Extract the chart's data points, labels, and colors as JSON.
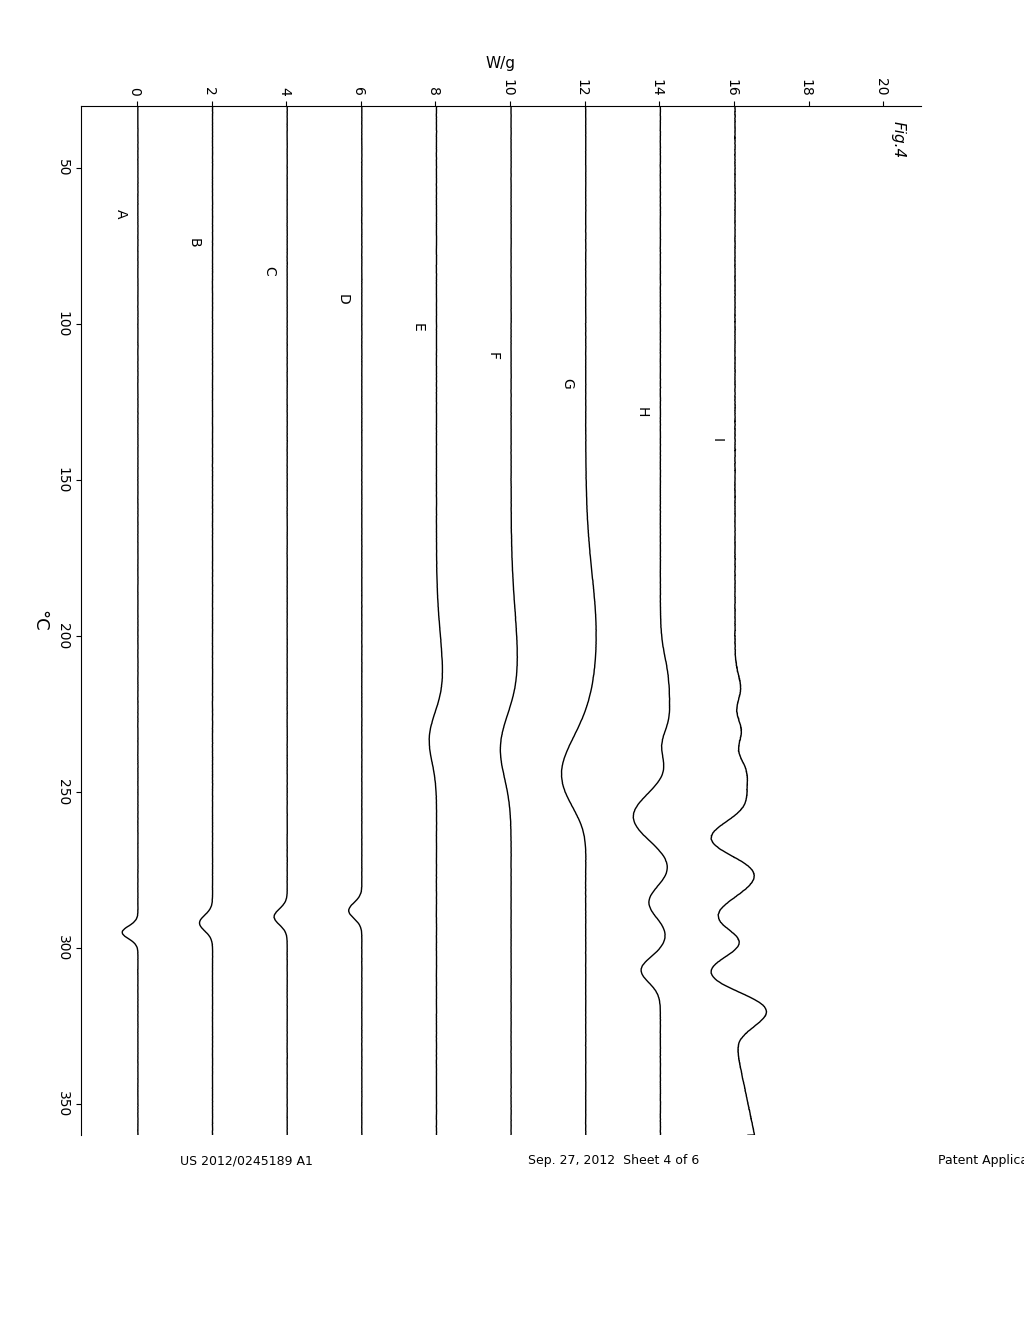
{
  "title_header": "Patent Application Publication",
  "title_date": "Sep. 27, 2012  Sheet 4 of 6",
  "title_patent": "US 2012/0245189 A1",
  "fig_label": "Fig.4",
  "temp_label": "°C",
  "wg_label": "W/g",
  "temp_min": 30,
  "temp_max": 350,
  "wg_min": 0,
  "wg_max": 20,
  "temp_ticks": [
    50,
    100,
    150,
    200,
    250,
    300,
    350
  ],
  "wg_ticks": [
    0,
    2,
    4,
    6,
    8,
    10,
    12,
    14,
    16,
    18,
    20
  ],
  "traces": [
    "A",
    "B",
    "C",
    "D",
    "E",
    "F",
    "G",
    "H",
    "I"
  ],
  "trace_offsets": [
    0,
    2,
    4,
    6,
    8,
    10,
    12,
    14,
    16
  ],
  "background_color": "#ffffff",
  "line_color": "#000000",
  "line_width": 1.0
}
